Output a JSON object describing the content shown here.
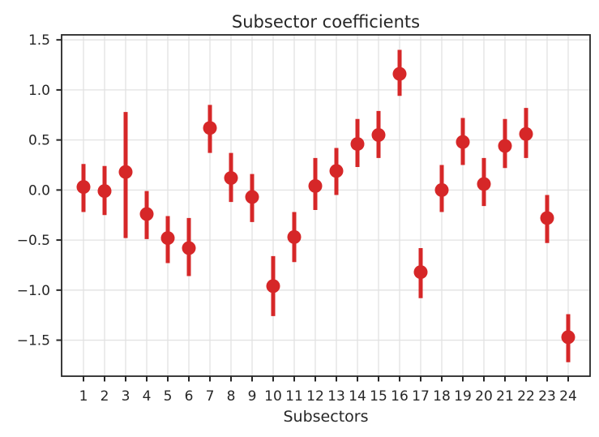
{
  "chart_data": {
    "type": "scatter",
    "variant": "points-with-error-bars",
    "title": "Subsector coefficients",
    "xlabel": "Subsectors",
    "ylabel": "",
    "categories": [
      1,
      2,
      3,
      4,
      5,
      6,
      7,
      8,
      9,
      10,
      11,
      12,
      13,
      14,
      15,
      16,
      17,
      18,
      19,
      20,
      21,
      22,
      23,
      24
    ],
    "series": [
      {
        "name": "coefficient",
        "values": [
          0.03,
          -0.01,
          0.18,
          -0.24,
          -0.48,
          -0.58,
          0.62,
          0.12,
          -0.07,
          -0.96,
          -0.47,
          0.04,
          0.19,
          0.46,
          0.55,
          1.16,
          -0.82,
          0.0,
          0.48,
          0.06,
          0.44,
          0.56,
          -0.28,
          -1.47
        ],
        "ci_low": [
          -0.22,
          -0.25,
          -0.48,
          -0.49,
          -0.73,
          -0.86,
          0.37,
          -0.12,
          -0.32,
          -1.26,
          -0.72,
          -0.2,
          -0.05,
          0.23,
          0.32,
          0.94,
          -1.08,
          -0.22,
          0.25,
          -0.16,
          0.22,
          0.32,
          -0.53,
          -1.72
        ],
        "ci_high": [
          0.26,
          0.24,
          0.78,
          -0.01,
          -0.26,
          -0.28,
          0.85,
          0.37,
          0.16,
          -0.66,
          -0.22,
          0.32,
          0.42,
          0.71,
          0.79,
          1.4,
          -0.58,
          0.25,
          0.72,
          0.32,
          0.71,
          0.82,
          -0.05,
          -1.24
        ]
      }
    ],
    "yticks": [
      -1.5,
      -1.0,
      -0.5,
      0.0,
      0.5,
      1.0,
      1.5
    ],
    "ylim": [
      -1.86,
      1.55
    ],
    "grid": true,
    "legend": "none",
    "colors": {
      "marker": "#d62728",
      "errorbar": "#d62728",
      "grid": "#e2e2e2",
      "spine": "#262626",
      "text": "#262626",
      "background": "#ffffff"
    }
  }
}
